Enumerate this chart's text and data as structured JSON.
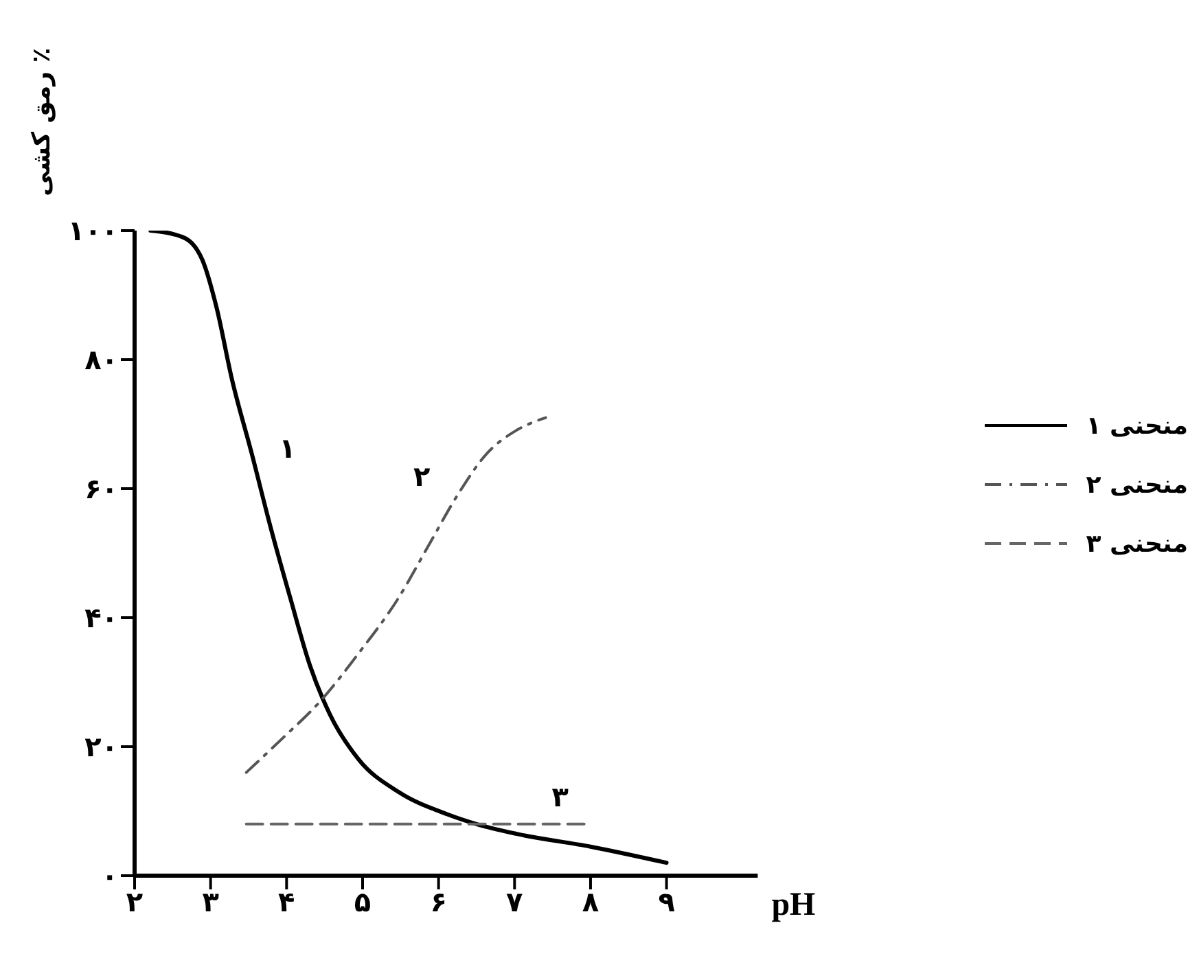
{
  "chart_data": {
    "type": "line",
    "xlabel": "pH",
    "ylabel": "رمق کشی ٪",
    "xlim": [
      2,
      10.2
    ],
    "ylim": [
      0,
      100
    ],
    "xticks": [
      {
        "value": 2,
        "label": "۲"
      },
      {
        "value": 3,
        "label": "۳"
      },
      {
        "value": 4,
        "label": "۴"
      },
      {
        "value": 5,
        "label": "۵"
      },
      {
        "value": 6,
        "label": "۶"
      },
      {
        "value": 7,
        "label": "۷"
      },
      {
        "value": 8,
        "label": "۸"
      },
      {
        "value": 9,
        "label": "۹"
      }
    ],
    "yticks": [
      {
        "value": 0,
        "label": "۰"
      },
      {
        "value": 20,
        "label": "۲۰"
      },
      {
        "value": 40,
        "label": "۴۰"
      },
      {
        "value": 60,
        "label": "۶۰"
      },
      {
        "value": 80,
        "label": "۸۰"
      },
      {
        "value": 100,
        "label": "۱۰۰"
      }
    ],
    "grid": false,
    "legend": "right",
    "marker": "none",
    "series": [
      {
        "name": "منحنی ۱",
        "color": "#000000",
        "line_style": "solid",
        "x": [
          2.21,
          2.63,
          2.89,
          3.08,
          3.28,
          3.54,
          3.79,
          4.05,
          4.31,
          4.57,
          4.95,
          5.47,
          6.12,
          6.5,
          7.02,
          8.0,
          9.0
        ],
        "values": [
          100,
          99,
          95.5,
          88,
          77,
          65.5,
          54,
          43,
          32.5,
          25,
          18,
          13,
          9.5,
          8,
          6.5,
          4.5,
          2
        ]
      },
      {
        "name": "منحنی ۲",
        "color": "#555555",
        "line_style": "dashdot",
        "x": [
          3.47,
          3.92,
          4.44,
          4.95,
          5.47,
          5.86,
          6.25,
          6.64,
          7.02,
          7.41
        ],
        "values": [
          16,
          21,
          27,
          34.5,
          43,
          51,
          59,
          65.5,
          69,
          71
        ]
      },
      {
        "name": "منحنی ۳",
        "color": "#666666",
        "line_style": "dashed",
        "x": [
          3.47,
          7.96
        ],
        "values": [
          8,
          8
        ]
      }
    ],
    "annotations": [
      {
        "text": "۱",
        "x": 3.54,
        "y": 65.5
      },
      {
        "text": "۲",
        "x": 6.25,
        "y": 59
      },
      {
        "text": "۳",
        "x": 7.6,
        "y": 8
      }
    ]
  }
}
